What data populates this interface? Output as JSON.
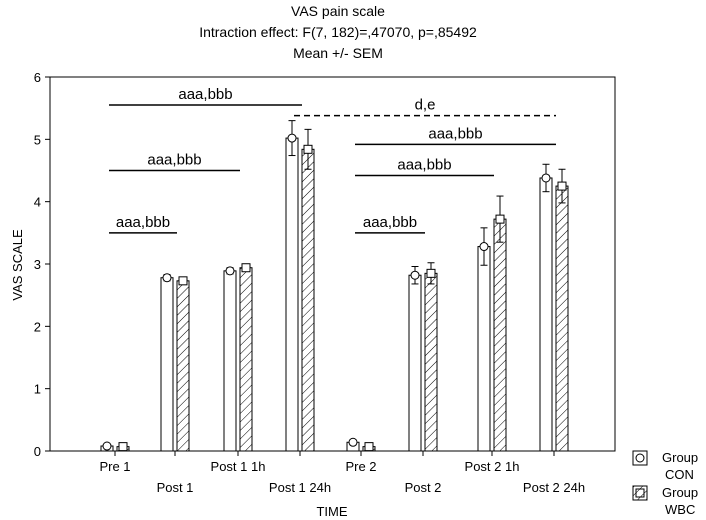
{
  "chart_data": {
    "type": "bar",
    "title": "VAS pain scale",
    "subtitle_lines": [
      "Intraction effect: F(7, 182)=,47070, p=,85492",
      "Mean +/- SEM"
    ],
    "xlabel": "TIME",
    "ylabel": "VAS SCALE",
    "ylim": [
      0,
      6
    ],
    "yticks": [
      "0",
      "1",
      "2",
      "3",
      "4",
      "5",
      "6"
    ],
    "categories": [
      "Pre 1",
      "Post 1",
      "Post 1 1h",
      "Post 1 24h",
      "Pre 2",
      "Post 2",
      "Post 2 1h",
      "Post 2 24h"
    ],
    "series": [
      {
        "name": "Group CON",
        "legend_lines": [
          "Group",
          "CON"
        ],
        "values": [
          0.08,
          2.78,
          2.89,
          5.02,
          0.14,
          2.82,
          3.28,
          4.38
        ],
        "sem": [
          0.03,
          0.05,
          0.05,
          0.28,
          0.04,
          0.14,
          0.3,
          0.22
        ],
        "marker": "circle",
        "fill": "#ffffff"
      },
      {
        "name": "Group WBC",
        "legend_lines": [
          "Group",
          "WBC"
        ],
        "values": [
          0.07,
          2.73,
          2.94,
          4.84,
          0.07,
          2.85,
          3.72,
          4.25
        ],
        "sem": [
          0.03,
          0.06,
          0.05,
          0.32,
          0.03,
          0.17,
          0.37,
          0.27
        ],
        "marker": "square",
        "fill": "hatched"
      }
    ],
    "annotations": [
      {
        "text": "aaa,bbb",
        "from": "Pre 1",
        "to": "Post 1",
        "y": 3.5,
        "style": "solid"
      },
      {
        "text": "aaa,bbb",
        "from": "Pre 1",
        "to": "Post 1 1h",
        "y": 4.5,
        "style": "solid"
      },
      {
        "text": "aaa,bbb",
        "from": "Pre 1",
        "to": "Post 1 24h",
        "y": 5.55,
        "style": "solid"
      },
      {
        "text": "d,e",
        "from": "Post 1 24h",
        "to": "Post 2 24h",
        "y": 5.38,
        "style": "dashed"
      },
      {
        "text": "aaa,bbb",
        "from": "Pre 2",
        "to": "Post 2 24h",
        "y": 4.92,
        "style": "solid"
      },
      {
        "text": "aaa,bbb",
        "from": "Pre 2",
        "to": "Post 2 1h",
        "y": 4.42,
        "style": "solid"
      },
      {
        "text": "aaa,bbb",
        "from": "Pre 2",
        "to": "Post 2",
        "y": 3.5,
        "style": "solid"
      }
    ],
    "grid": false,
    "legend_position": "bottom-right"
  }
}
